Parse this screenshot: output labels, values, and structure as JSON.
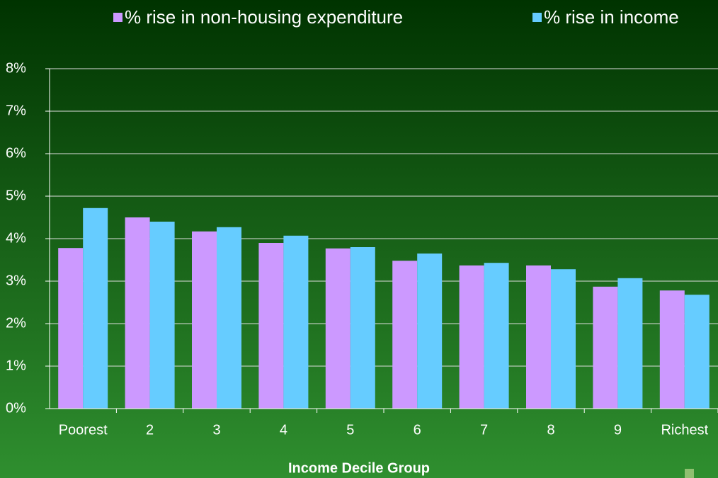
{
  "chart_data": {
    "type": "bar",
    "x_label": "Income Decile Group",
    "categories": [
      "Poorest",
      "2",
      "3",
      "4",
      "5",
      "6",
      "7",
      "8",
      "9",
      "Richest"
    ],
    "series": [
      {
        "name": "% rise in non-housing expenditure",
        "color": "#cc99ff",
        "values": [
          3.78,
          4.5,
          4.17,
          3.9,
          3.77,
          3.48,
          3.37,
          3.37,
          2.87,
          2.78
        ]
      },
      {
        "name": "% rise in income",
        "color": "#66ccff",
        "values": [
          4.72,
          4.4,
          4.27,
          4.07,
          3.8,
          3.65,
          3.43,
          3.28,
          3.07,
          2.68
        ]
      }
    ],
    "ylim": [
      0,
      8
    ],
    "yticks": [
      {
        "value": 0,
        "label": "0%"
      },
      {
        "value": 1,
        "label": "1%"
      },
      {
        "value": 2,
        "label": "2%"
      },
      {
        "value": 3,
        "label": "3%"
      },
      {
        "value": 4,
        "label": "4%"
      },
      {
        "value": 5,
        "label": "5%"
      },
      {
        "value": 6,
        "label": "6%"
      },
      {
        "value": 7,
        "label": "7%"
      },
      {
        "value": 8,
        "label": "8%"
      }
    ],
    "grid": true,
    "legend": "top"
  }
}
